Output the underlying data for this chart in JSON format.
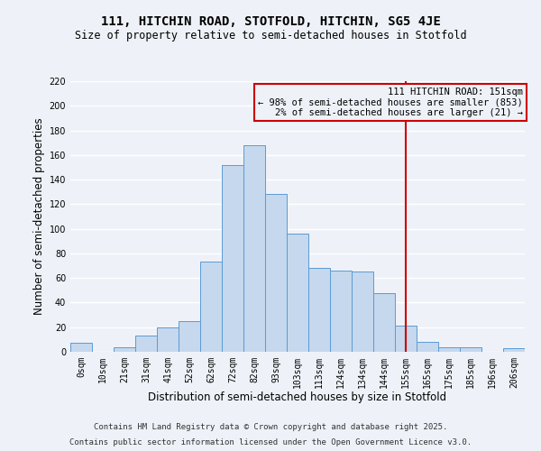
{
  "title": "111, HITCHIN ROAD, STOTFOLD, HITCHIN, SG5 4JE",
  "subtitle": "Size of property relative to semi-detached houses in Stotfold",
  "xlabel": "Distribution of semi-detached houses by size in Stotfold",
  "ylabel": "Number of semi-detached properties",
  "bar_labels": [
    "0sqm",
    "10sqm",
    "21sqm",
    "31sqm",
    "41sqm",
    "52sqm",
    "62sqm",
    "72sqm",
    "82sqm",
    "93sqm",
    "103sqm",
    "113sqm",
    "124sqm",
    "134sqm",
    "144sqm",
    "155sqm",
    "165sqm",
    "175sqm",
    "185sqm",
    "196sqm",
    "206sqm"
  ],
  "bar_values": [
    7,
    0,
    4,
    13,
    20,
    25,
    73,
    152,
    168,
    128,
    96,
    68,
    66,
    65,
    48,
    21,
    8,
    4,
    4,
    0,
    3
  ],
  "bar_color": "#c5d8ed",
  "bar_edge_color": "#5b9bd5",
  "vline_x": 15,
  "vline_color": "#cc0000",
  "annotation_title": "111 HITCHIN ROAD: 151sqm",
  "annotation_line1": "← 98% of semi-detached houses are smaller (853)",
  "annotation_line2": "2% of semi-detached houses are larger (21) →",
  "annotation_box_edge": "#cc0000",
  "ylim": [
    0,
    220
  ],
  "yticks": [
    0,
    20,
    40,
    60,
    80,
    100,
    120,
    140,
    160,
    180,
    200,
    220
  ],
  "footer1": "Contains HM Land Registry data © Crown copyright and database right 2025.",
  "footer2": "Contains public sector information licensed under the Open Government Licence v3.0.",
  "bg_color": "#eef2f8",
  "grid_color": "#ffffff",
  "title_fontsize": 10,
  "subtitle_fontsize": 8.5,
  "axis_label_fontsize": 8.5,
  "tick_fontsize": 7,
  "annotation_fontsize": 7.5,
  "footer_fontsize": 6.5
}
